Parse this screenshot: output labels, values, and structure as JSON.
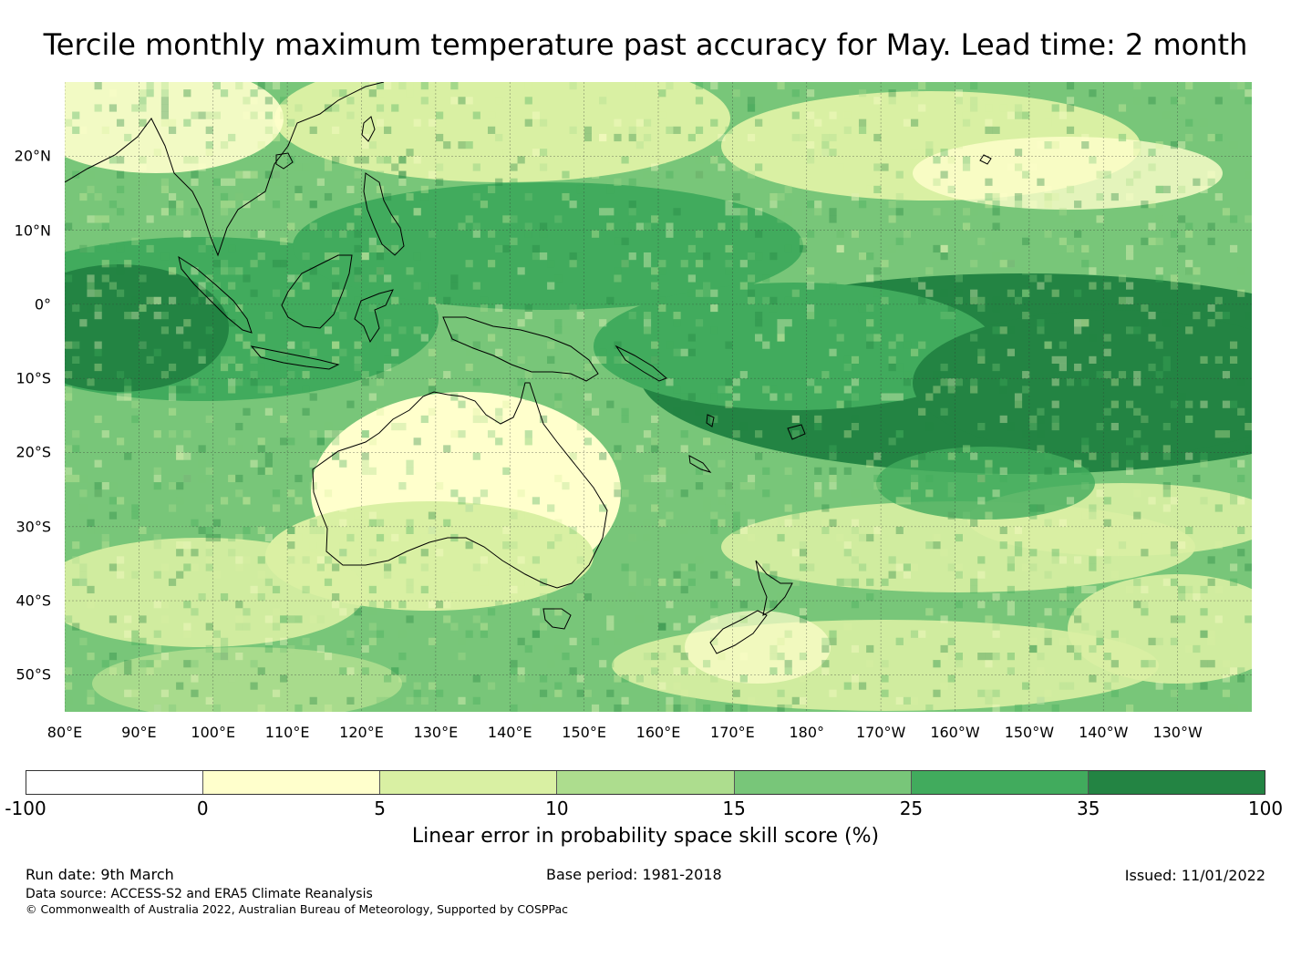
{
  "title": "Tercile monthly maximum temperature past accuracy for May. Lead time: 2 month",
  "map": {
    "lat_labels": [
      "20°N",
      "10°N",
      "0°",
      "10°S",
      "20°S",
      "30°S",
      "40°S",
      "50°S"
    ],
    "lat_values": [
      20,
      10,
      0,
      -10,
      -20,
      -30,
      -40,
      -50
    ],
    "lon_labels": [
      "80°E",
      "90°E",
      "100°E",
      "110°E",
      "120°E",
      "130°E",
      "140°E",
      "150°E",
      "160°E",
      "170°E",
      "180°",
      "170°W",
      "160°W",
      "150°W",
      "140°W",
      "130°W"
    ],
    "lon_values": [
      80,
      90,
      100,
      110,
      120,
      130,
      140,
      150,
      160,
      170,
      180,
      190,
      200,
      210,
      220,
      230
    ],
    "extent": {
      "lon_min": 80,
      "lon_max": 240,
      "lat_min": -55,
      "lat_max": 30
    }
  },
  "colorbar": {
    "ticks": [
      "-100",
      "0",
      "5",
      "10",
      "15",
      "25",
      "35",
      "100"
    ],
    "colors": [
      "#ffffff",
      "#ffffcc",
      "#d9f0a3",
      "#addd8e",
      "#78c679",
      "#41ab5d",
      "#238443"
    ],
    "label": "Linear error in probability space skill score (%)"
  },
  "footer": {
    "run_date": "Run date: 9th March",
    "base_period": "Base period: 1981-2018",
    "issued": "Issued: 11/01/2022",
    "data_source": "Data source: ACCESS-S2 and ERA5 Climate Reanalysis",
    "copyright": "© Commonwealth of Australia 2022, Australian Bureau of Meteorology, Supported by COSPPac"
  }
}
